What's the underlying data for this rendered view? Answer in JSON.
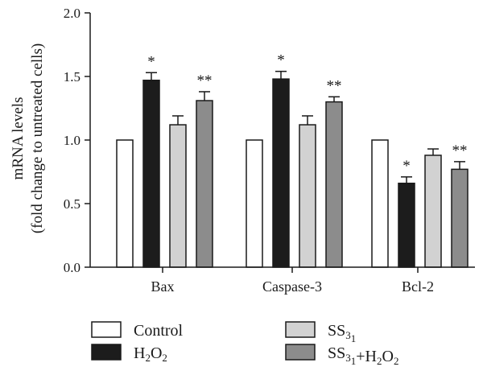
{
  "chart_data": {
    "type": "bar",
    "title": "",
    "xlabel": "",
    "ylabel_line1": "mRNA levels",
    "ylabel_line2": "(fold change to untreated cells)",
    "ylim": [
      0,
      2.0
    ],
    "yticks": [
      "0.0",
      "0.5",
      "1.0",
      "1.5",
      "2.0"
    ],
    "grid": false,
    "legend_position": "bottom",
    "categories": [
      "Bax",
      "Caspase-3",
      "Bcl-2"
    ],
    "series": [
      {
        "name": "Control",
        "color": "#ffffff",
        "values": [
          1.0,
          1.0,
          1.0
        ],
        "errors": [
          0,
          0,
          0
        ],
        "marks": [
          "",
          "",
          ""
        ]
      },
      {
        "name": "H2O2",
        "color": "#1c1c1c",
        "values": [
          1.47,
          1.48,
          0.66
        ],
        "errors": [
          0.06,
          0.06,
          0.05
        ],
        "marks": [
          "*",
          "*",
          "*"
        ]
      },
      {
        "name": "SS31",
        "color": "#d2d2d2",
        "values": [
          1.12,
          1.12,
          0.88
        ],
        "errors": [
          0.07,
          0.07,
          0.05
        ],
        "marks": [
          "",
          "",
          ""
        ]
      },
      {
        "name": "SS31+H2O2",
        "color": "#8c8c8c",
        "values": [
          1.31,
          1.3,
          0.77
        ],
        "errors": [
          0.07,
          0.04,
          0.06
        ],
        "marks": [
          "**",
          "**",
          "**"
        ]
      }
    ]
  }
}
